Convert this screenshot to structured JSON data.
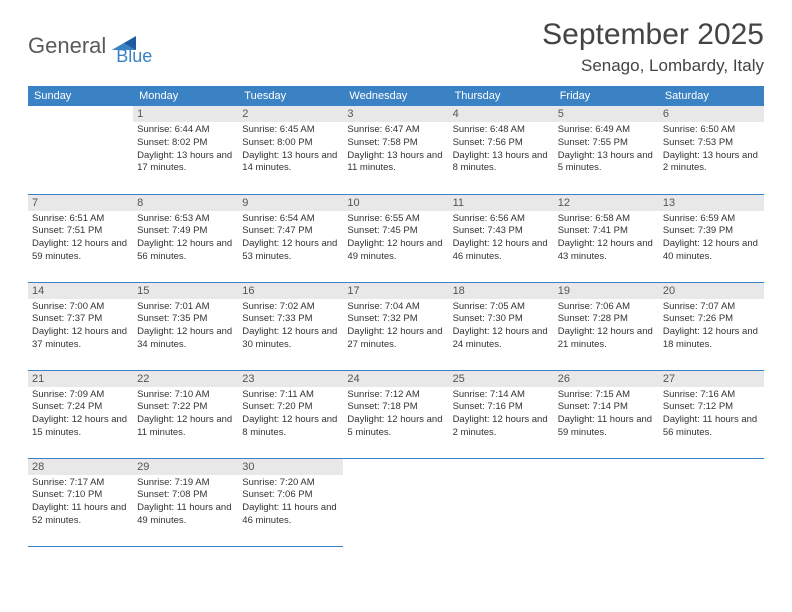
{
  "logo": {
    "part1": "General",
    "part2": "Blue"
  },
  "title": "September 2025",
  "location": "Senago, Lombardy, Italy",
  "colors": {
    "header_bg": "#3b82c4",
    "header_text": "#ffffff",
    "daynum_bg": "#e8e8e8",
    "daynum_text": "#555555",
    "body_text": "#333333",
    "border": "#3b82c4",
    "logo_gray": "#5a5a5a",
    "logo_blue": "#3b82c4",
    "page_bg": "#ffffff"
  },
  "typography": {
    "title_fontsize": 30,
    "location_fontsize": 17,
    "header_fontsize": 11,
    "daynum_fontsize": 11,
    "cell_fontsize": 9.5
  },
  "days_of_week": [
    "Sunday",
    "Monday",
    "Tuesday",
    "Wednesday",
    "Thursday",
    "Friday",
    "Saturday"
  ],
  "weeks": [
    [
      null,
      {
        "n": "1",
        "sunrise": "6:44 AM",
        "sunset": "8:02 PM",
        "daylight": "13 hours and 17 minutes."
      },
      {
        "n": "2",
        "sunrise": "6:45 AM",
        "sunset": "8:00 PM",
        "daylight": "13 hours and 14 minutes."
      },
      {
        "n": "3",
        "sunrise": "6:47 AM",
        "sunset": "7:58 PM",
        "daylight": "13 hours and 11 minutes."
      },
      {
        "n": "4",
        "sunrise": "6:48 AM",
        "sunset": "7:56 PM",
        "daylight": "13 hours and 8 minutes."
      },
      {
        "n": "5",
        "sunrise": "6:49 AM",
        "sunset": "7:55 PM",
        "daylight": "13 hours and 5 minutes."
      },
      {
        "n": "6",
        "sunrise": "6:50 AM",
        "sunset": "7:53 PM",
        "daylight": "13 hours and 2 minutes."
      }
    ],
    [
      {
        "n": "7",
        "sunrise": "6:51 AM",
        "sunset": "7:51 PM",
        "daylight": "12 hours and 59 minutes."
      },
      {
        "n": "8",
        "sunrise": "6:53 AM",
        "sunset": "7:49 PM",
        "daylight": "12 hours and 56 minutes."
      },
      {
        "n": "9",
        "sunrise": "6:54 AM",
        "sunset": "7:47 PM",
        "daylight": "12 hours and 53 minutes."
      },
      {
        "n": "10",
        "sunrise": "6:55 AM",
        "sunset": "7:45 PM",
        "daylight": "12 hours and 49 minutes."
      },
      {
        "n": "11",
        "sunrise": "6:56 AM",
        "sunset": "7:43 PM",
        "daylight": "12 hours and 46 minutes."
      },
      {
        "n": "12",
        "sunrise": "6:58 AM",
        "sunset": "7:41 PM",
        "daylight": "12 hours and 43 minutes."
      },
      {
        "n": "13",
        "sunrise": "6:59 AM",
        "sunset": "7:39 PM",
        "daylight": "12 hours and 40 minutes."
      }
    ],
    [
      {
        "n": "14",
        "sunrise": "7:00 AM",
        "sunset": "7:37 PM",
        "daylight": "12 hours and 37 minutes."
      },
      {
        "n": "15",
        "sunrise": "7:01 AM",
        "sunset": "7:35 PM",
        "daylight": "12 hours and 34 minutes."
      },
      {
        "n": "16",
        "sunrise": "7:02 AM",
        "sunset": "7:33 PM",
        "daylight": "12 hours and 30 minutes."
      },
      {
        "n": "17",
        "sunrise": "7:04 AM",
        "sunset": "7:32 PM",
        "daylight": "12 hours and 27 minutes."
      },
      {
        "n": "18",
        "sunrise": "7:05 AM",
        "sunset": "7:30 PM",
        "daylight": "12 hours and 24 minutes."
      },
      {
        "n": "19",
        "sunrise": "7:06 AM",
        "sunset": "7:28 PM",
        "daylight": "12 hours and 21 minutes."
      },
      {
        "n": "20",
        "sunrise": "7:07 AM",
        "sunset": "7:26 PM",
        "daylight": "12 hours and 18 minutes."
      }
    ],
    [
      {
        "n": "21",
        "sunrise": "7:09 AM",
        "sunset": "7:24 PM",
        "daylight": "12 hours and 15 minutes."
      },
      {
        "n": "22",
        "sunrise": "7:10 AM",
        "sunset": "7:22 PM",
        "daylight": "12 hours and 11 minutes."
      },
      {
        "n": "23",
        "sunrise": "7:11 AM",
        "sunset": "7:20 PM",
        "daylight": "12 hours and 8 minutes."
      },
      {
        "n": "24",
        "sunrise": "7:12 AM",
        "sunset": "7:18 PM",
        "daylight": "12 hours and 5 minutes."
      },
      {
        "n": "25",
        "sunrise": "7:14 AM",
        "sunset": "7:16 PM",
        "daylight": "12 hours and 2 minutes."
      },
      {
        "n": "26",
        "sunrise": "7:15 AM",
        "sunset": "7:14 PM",
        "daylight": "11 hours and 59 minutes."
      },
      {
        "n": "27",
        "sunrise": "7:16 AM",
        "sunset": "7:12 PM",
        "daylight": "11 hours and 56 minutes."
      }
    ],
    [
      {
        "n": "28",
        "sunrise": "7:17 AM",
        "sunset": "7:10 PM",
        "daylight": "11 hours and 52 minutes."
      },
      {
        "n": "29",
        "sunrise": "7:19 AM",
        "sunset": "7:08 PM",
        "daylight": "11 hours and 49 minutes."
      },
      {
        "n": "30",
        "sunrise": "7:20 AM",
        "sunset": "7:06 PM",
        "daylight": "11 hours and 46 minutes."
      },
      null,
      null,
      null,
      null
    ]
  ],
  "labels": {
    "sunrise": "Sunrise:",
    "sunset": "Sunset:",
    "daylight": "Daylight:"
  }
}
